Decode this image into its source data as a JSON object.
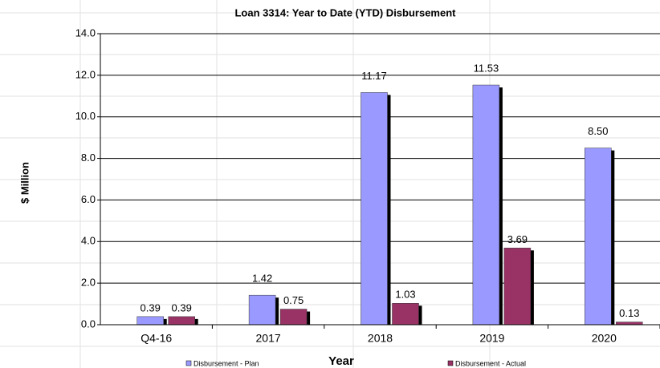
{
  "chart_data": {
    "type": "bar",
    "title": "Loan 3314: Year to Date (YTD) Disbursement",
    "x_label": "Year",
    "y_label": "$ Million",
    "categories": [
      "Q4-16",
      "2017",
      "2018",
      "2019",
      "2020"
    ],
    "series": [
      {
        "name": "Disbursement - Plan",
        "color": "#9999ff",
        "values": [
          0.39,
          1.42,
          11.17,
          11.53,
          8.5
        ],
        "value_labels": [
          "0.39",
          "1.42",
          "11.17",
          "11.53",
          "8.50"
        ]
      },
      {
        "name": "Disbursement - Actual",
        "color": "#993366",
        "values": [
          0.39,
          0.75,
          1.03,
          3.69,
          0.13
        ],
        "value_labels": [
          "0.39",
          "0.75",
          "1.03",
          "3.69",
          "0.13"
        ]
      }
    ],
    "ylim": [
      0,
      14
    ],
    "yticks": [
      {
        "value": 0,
        "label": "0.0"
      },
      {
        "value": 2,
        "label": "2.0"
      },
      {
        "value": 4,
        "label": "4.0"
      },
      {
        "value": 6,
        "label": "6.0"
      },
      {
        "value": 8,
        "label": "8.0"
      },
      {
        "value": 10,
        "label": "10.0"
      },
      {
        "value": 12,
        "label": "12.0"
      },
      {
        "value": 14,
        "label": "14.0"
      }
    ],
    "grid": true
  }
}
